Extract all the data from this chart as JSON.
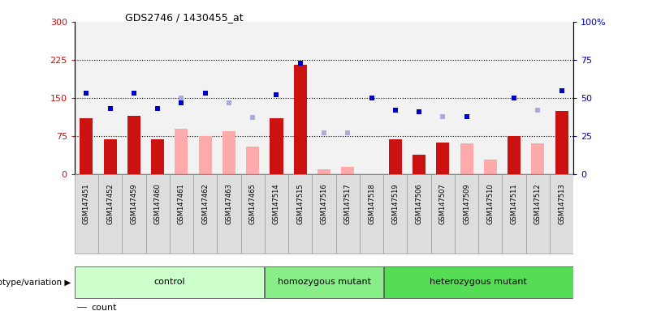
{
  "title": "GDS2746 / 1430455_at",
  "samples": [
    "GSM147451",
    "GSM147452",
    "GSM147459",
    "GSM147460",
    "GSM147461",
    "GSM147462",
    "GSM147463",
    "GSM147465",
    "GSM147514",
    "GSM147515",
    "GSM147516",
    "GSM147517",
    "GSM147518",
    "GSM147519",
    "GSM147506",
    "GSM147507",
    "GSM147509",
    "GSM147510",
    "GSM147511",
    "GSM147512",
    "GSM147513"
  ],
  "count": [
    110,
    68,
    115,
    68,
    null,
    null,
    75,
    null,
    110,
    215,
    null,
    null,
    null,
    68,
    38,
    63,
    null,
    null,
    75,
    null,
    125
  ],
  "percentile": [
    53,
    43,
    53,
    43,
    47,
    53,
    47,
    null,
    52,
    73,
    null,
    null,
    50,
    42,
    41,
    38,
    38,
    null,
    50,
    null,
    55
  ],
  "absent_value": [
    null,
    null,
    null,
    null,
    90,
    75,
    85,
    55,
    null,
    null,
    10,
    15,
    null,
    null,
    null,
    null,
    60,
    28,
    null,
    60,
    null
  ],
  "absent_rank": [
    null,
    null,
    null,
    null,
    50,
    null,
    47,
    37,
    null,
    null,
    27,
    27,
    null,
    null,
    null,
    38,
    null,
    null,
    null,
    42,
    null
  ],
  "groups": [
    {
      "label": "control",
      "start": 0,
      "end": 8,
      "color": "#ccffcc"
    },
    {
      "label": "homozygous mutant",
      "start": 8,
      "end": 13,
      "color": "#88ee88"
    },
    {
      "label": "heterozygous mutant",
      "start": 13,
      "end": 21,
      "color": "#55dd55"
    }
  ],
  "ylim_left": [
    0,
    300
  ],
  "ylim_right": [
    0,
    100
  ],
  "yticks_left": [
    0,
    75,
    150,
    225,
    300
  ],
  "yticks_right": [
    0,
    25,
    50,
    75,
    100
  ],
  "hlines": [
    75,
    150,
    225
  ],
  "bar_color": "#cc1111",
  "absent_bar_color": "#ffaaaa",
  "blue_color": "#0000cc",
  "absent_blue_color": "#aaaadd",
  "bar_width": 0.55,
  "marker_size": 5
}
